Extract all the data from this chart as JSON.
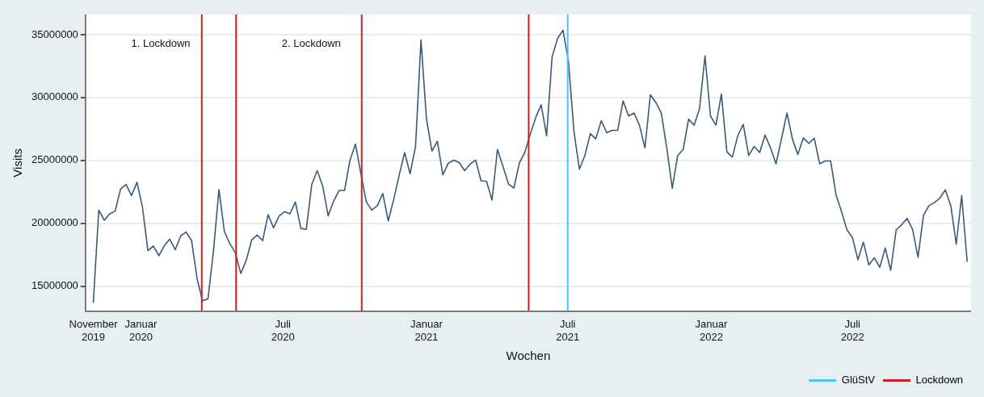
{
  "chart_data": {
    "type": "line",
    "xlabel": "Wochen",
    "ylabel": "Visits",
    "x": [
      "2019-11-01",
      "2019-11-08",
      "2019-11-15",
      "2019-11-22",
      "2019-11-29",
      "2019-12-06",
      "2019-12-13",
      "2019-12-20",
      "2019-12-27",
      "2020-01-03",
      "2020-01-10",
      "2020-01-17",
      "2020-01-24",
      "2020-01-31",
      "2020-02-07",
      "2020-02-14",
      "2020-02-21",
      "2020-02-28",
      "2020-03-06",
      "2020-03-13",
      "2020-03-20",
      "2020-03-27",
      "2020-04-03",
      "2020-04-10",
      "2020-04-17",
      "2020-04-24",
      "2020-05-01",
      "2020-05-08",
      "2020-05-15",
      "2020-05-22",
      "2020-05-29",
      "2020-06-05",
      "2020-06-12",
      "2020-06-19",
      "2020-06-26",
      "2020-07-03",
      "2020-07-10",
      "2020-07-17",
      "2020-07-24",
      "2020-07-31",
      "2020-08-07",
      "2020-08-14",
      "2020-08-21",
      "2020-08-28",
      "2020-09-04",
      "2020-09-11",
      "2020-09-18",
      "2020-09-25",
      "2020-10-02",
      "2020-10-09",
      "2020-10-16",
      "2020-10-23",
      "2020-10-30",
      "2020-11-06",
      "2020-11-13",
      "2020-11-20",
      "2020-11-27",
      "2020-12-04",
      "2020-12-11",
      "2020-12-18",
      "2020-12-25",
      "2021-01-01",
      "2021-01-08",
      "2021-01-15",
      "2021-01-22",
      "2021-01-29",
      "2021-02-05",
      "2021-02-12",
      "2021-02-19",
      "2021-02-26",
      "2021-03-05",
      "2021-03-12",
      "2021-03-19",
      "2021-03-26",
      "2021-04-02",
      "2021-04-09",
      "2021-04-16",
      "2021-04-23",
      "2021-04-30",
      "2021-05-07",
      "2021-05-14",
      "2021-05-21",
      "2021-05-28",
      "2021-06-04",
      "2021-06-11",
      "2021-06-18",
      "2021-06-25",
      "2021-07-02",
      "2021-07-09",
      "2021-07-16",
      "2021-07-23",
      "2021-07-30",
      "2021-08-06",
      "2021-08-13",
      "2021-08-20",
      "2021-08-27",
      "2021-09-03",
      "2021-09-10",
      "2021-09-17",
      "2021-09-24",
      "2021-10-01",
      "2021-10-08",
      "2021-10-15",
      "2021-10-22",
      "2021-10-29",
      "2021-11-05",
      "2021-11-12",
      "2021-11-19",
      "2021-11-26",
      "2021-12-03",
      "2021-12-10",
      "2021-12-17",
      "2021-12-24",
      "2021-12-31",
      "2022-01-07",
      "2022-01-14",
      "2022-01-21",
      "2022-01-28",
      "2022-02-04",
      "2022-02-11",
      "2022-02-18",
      "2022-02-25",
      "2022-03-04",
      "2022-03-11",
      "2022-03-18",
      "2022-03-25",
      "2022-04-01",
      "2022-04-08",
      "2022-04-15",
      "2022-04-22",
      "2022-04-29",
      "2022-05-06",
      "2022-05-13",
      "2022-05-20",
      "2022-05-27",
      "2022-06-03",
      "2022-06-10",
      "2022-06-17",
      "2022-06-24",
      "2022-07-01",
      "2022-07-08",
      "2022-07-15",
      "2022-07-22",
      "2022-07-29",
      "2022-08-05",
      "2022-08-12",
      "2022-08-19",
      "2022-08-26",
      "2022-09-02",
      "2022-09-09",
      "2022-09-16",
      "2022-09-23",
      "2022-09-30",
      "2022-10-07",
      "2022-10-14",
      "2022-10-21",
      "2022-10-28",
      "2022-11-04",
      "2022-11-11",
      "2022-11-18",
      "2022-11-25"
    ],
    "series": [
      {
        "color": "#3b5a7a",
        "values": [
          13670000,
          21040000,
          20240000,
          20750000,
          20970000,
          22730000,
          23090000,
          22200000,
          23260000,
          21280000,
          17830000,
          18190000,
          17420000,
          18210000,
          18740000,
          17900000,
          18990000,
          19300000,
          18620000,
          15600000,
          13840000,
          13990000,
          17780000,
          22680000,
          19350000,
          18380000,
          17660000,
          16010000,
          17050000,
          18670000,
          19060000,
          18620000,
          20680000,
          19640000,
          20560000,
          20920000,
          20750000,
          21690000,
          19590000,
          19520000,
          23090000,
          24180000,
          22970000,
          20600000,
          21760000,
          22610000,
          22610000,
          25020000,
          26300000,
          23940000,
          21690000,
          21040000,
          21400000,
          22370000,
          20190000,
          21880000,
          23820000,
          25630000,
          23940000,
          26110000,
          34570000,
          28290000,
          25750000,
          26520000,
          23860000,
          24780000,
          25020000,
          24830000,
          24180000,
          24710000,
          25020000,
          23380000,
          23330000,
          21840000,
          25870000,
          24540000,
          23140000,
          22800000,
          24780000,
          25630000,
          27080000,
          28410000,
          29420000,
          26960000,
          33240000,
          34690000,
          35360000,
          32870000,
          27320000,
          24300000,
          25390000,
          27130000,
          26710000,
          28160000,
          27200000,
          27390000,
          27390000,
          29730000,
          28530000,
          28770000,
          27800000,
          25990000,
          30220000,
          29610000,
          28770000,
          25990000,
          22780000,
          25390000,
          25870000,
          28290000,
          27800000,
          29130000,
          33310000,
          28530000,
          27800000,
          30270000,
          25680000,
          25270000,
          26960000,
          27870000,
          25390000,
          26110000,
          25630000,
          27000000,
          25990000,
          24730000,
          26710000,
          28770000,
          26710000,
          25460000,
          26790000,
          26350000,
          26760000,
          24730000,
          24950000,
          24950000,
          22250000,
          20920000,
          19470000,
          18860000,
          17100000,
          18500000,
          16690000,
          17250000,
          16500000,
          18020000,
          16260000,
          19470000,
          19880000,
          20390000,
          19520000,
          17290000,
          20630000,
          21400000,
          21640000,
          22000000,
          22660000,
          21400000,
          18330000,
          22200000,
          16930000
        ]
      }
    ],
    "xlim": [
      "2019-10-22",
      "2022-11-30"
    ],
    "xticks": [
      {
        "value": "2019-11-01",
        "label": "November 2019"
      },
      {
        "value": "2020-01-01",
        "label": "Januar 2020"
      },
      {
        "value": "2020-07-01",
        "label": "Juli 2020"
      },
      {
        "value": "2021-01-01",
        "label": "Januar 2021"
      },
      {
        "value": "2021-07-01",
        "label": "Juli 2021"
      },
      {
        "value": "2022-01-01",
        "label": "Januar 2022"
      },
      {
        "value": "2022-07-01",
        "label": "Juli 2022"
      }
    ],
    "ylim": [
      13000000,
      36600000
    ],
    "yticks": [
      15000000,
      20000000,
      25000000,
      30000000,
      35000000
    ],
    "ref_lines": [
      {
        "axis": "x",
        "value": "2020-03-19",
        "label": "Lockdown",
        "color": "#cc1f1f"
      },
      {
        "axis": "x",
        "value": "2020-05-02",
        "color": "#cc1f1f"
      },
      {
        "axis": "x",
        "value": "2020-10-10",
        "color": "#cc1f1f"
      },
      {
        "axis": "x",
        "value": "2021-05-12",
        "color": "#cc1f1f"
      },
      {
        "axis": "x",
        "value": "2021-07-01",
        "label": "GlüStV",
        "color": "#4fc3f7"
      }
    ],
    "annotations": [
      "1. Lockdown",
      "2. Lockdown"
    ],
    "grid": "y",
    "legend": "bottom right",
    "marker": "none",
    "line_style": "solid"
  }
}
